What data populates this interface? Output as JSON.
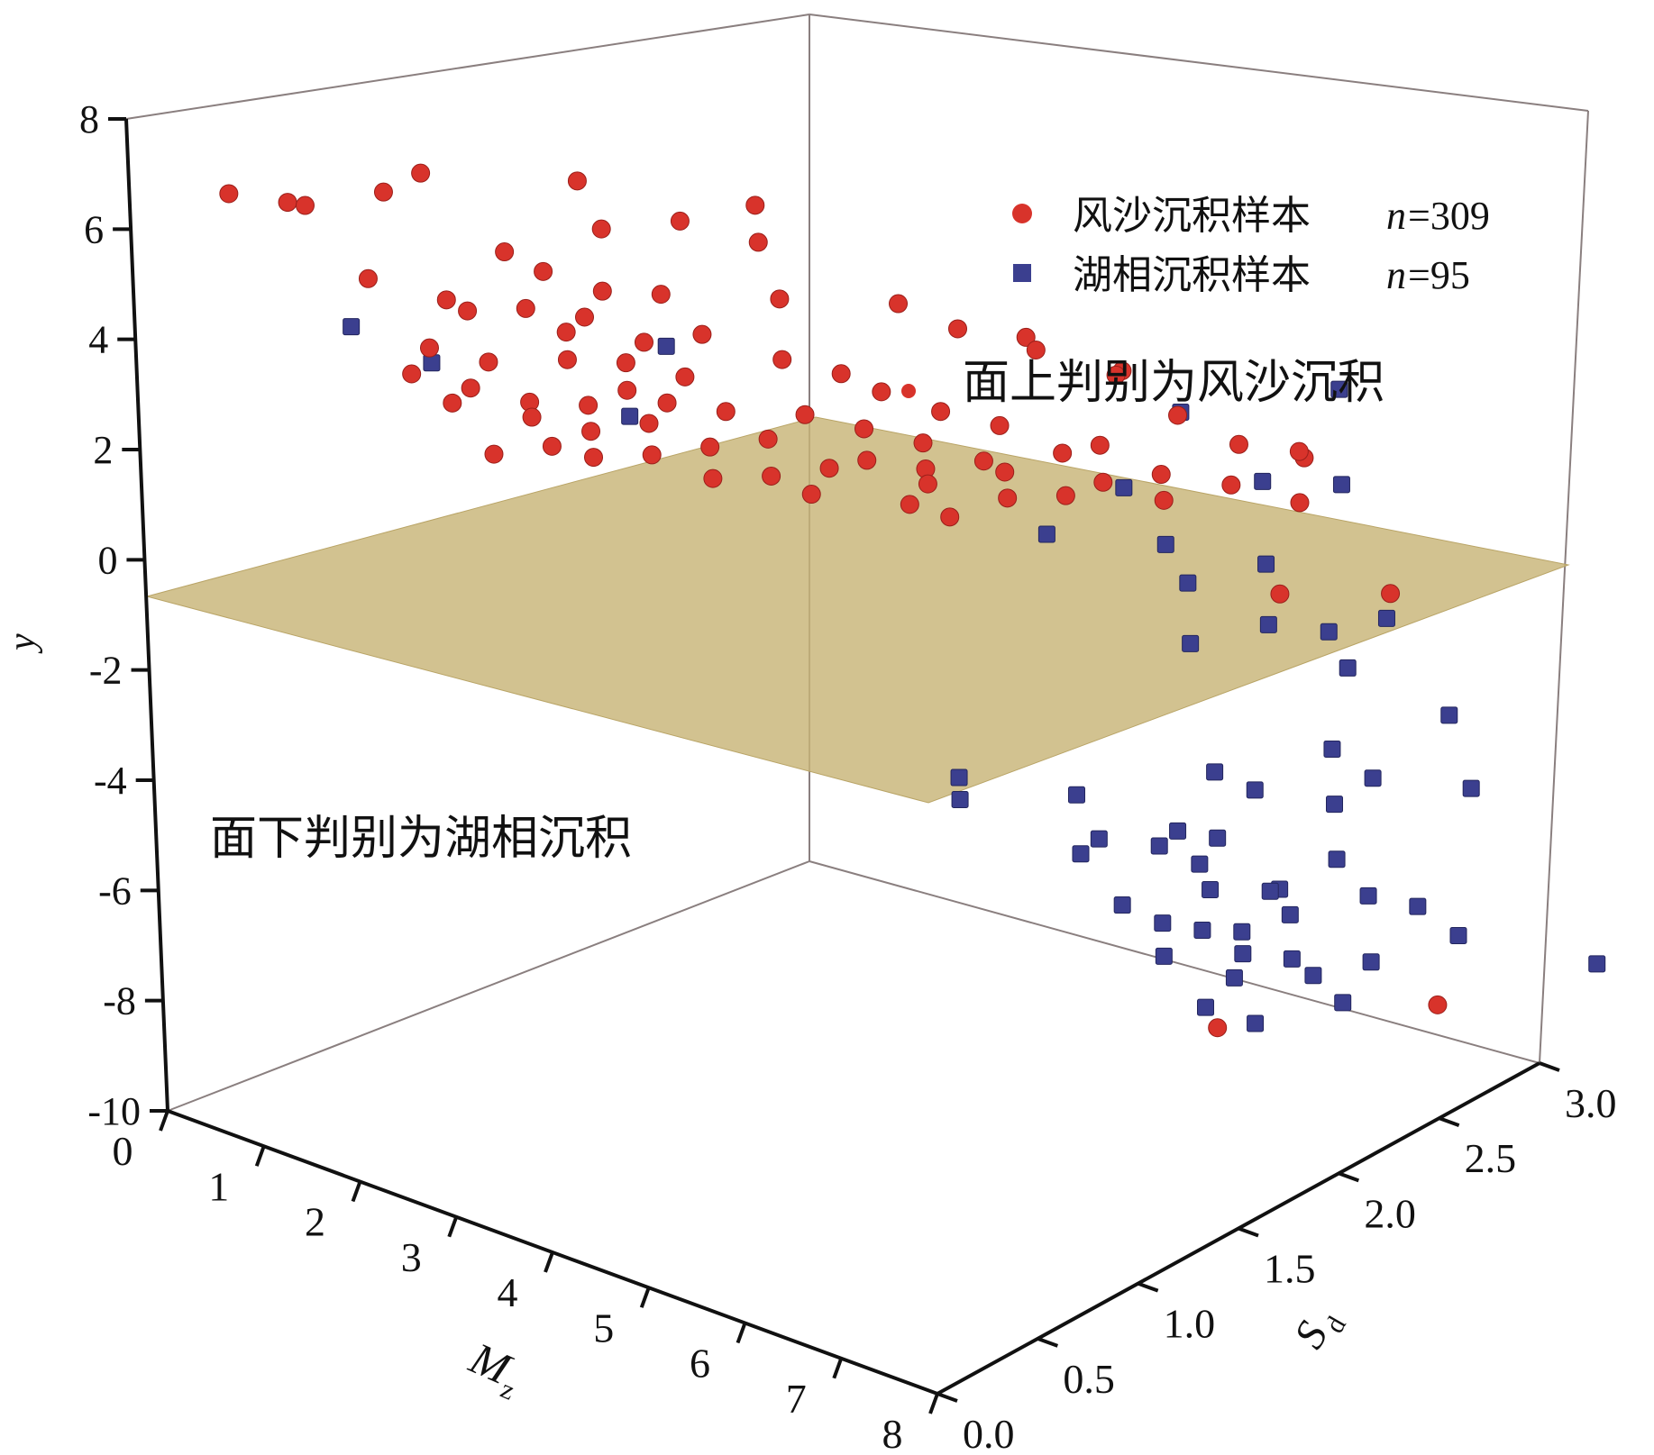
{
  "colors": {
    "aeolian": "#d8332b",
    "lacustrine": "#3b3f8f",
    "plane_fill": "#c8b477",
    "frame": "#8a7f7f",
    "axis": "#111111"
  },
  "chart_data": {
    "type": "scatter3d",
    "title": "",
    "axes": {
      "x": {
        "label": "M",
        "label_sub": "z",
        "range": [
          0,
          8
        ],
        "ticks": [
          "0",
          "1",
          "2",
          "3",
          "4",
          "5",
          "6",
          "7",
          "8"
        ]
      },
      "z": {
        "label": "S",
        "label_sub": "d",
        "range": [
          0.0,
          3.0
        ],
        "ticks": [
          "0.0",
          "0.5",
          "1.0",
          "1.5",
          "2.0",
          "2.5",
          "3.0"
        ]
      },
      "y": {
        "label": "y",
        "range": [
          -10,
          8
        ],
        "ticks": [
          "8",
          "6",
          "4",
          "2",
          "0",
          "-2",
          "-4",
          "-6",
          "-8",
          "-10"
        ]
      }
    },
    "plane": {
      "y": 0,
      "description_above": "面上判别为风沙沉积",
      "description_below": "面下判别为湖相沉积"
    },
    "legend": {
      "placement": "top-right",
      "entries": [
        {
          "name": "风沙沉积样本",
          "n_label": "n",
          "n_value": "=309",
          "marker": "circle"
        },
        {
          "name": "湖相沉积样本",
          "n_label": "n",
          "n_value": "=95",
          "marker": "square"
        }
      ]
    },
    "series": [
      {
        "name": "风沙沉积样本",
        "points_xzy": [
          [
            0.4,
            0.3,
            6.3
          ],
          [
            0.8,
            0.4,
            6.2
          ],
          [
            1.2,
            0.3,
            6.6
          ],
          [
            1.6,
            0.5,
            6.7
          ],
          [
            2.0,
            0.5,
            7.3
          ],
          [
            3.0,
            0.8,
            7.2
          ],
          [
            4.0,
            1.2,
            6.6
          ],
          [
            1.4,
            0.5,
            5.0
          ],
          [
            2.2,
            0.8,
            5.4
          ],
          [
            2.6,
            0.8,
            5.3
          ],
          [
            3.0,
            0.9,
            5.0
          ],
          [
            3.4,
            1.0,
            5.0
          ],
          [
            4.0,
            1.3,
            4.7
          ],
          [
            3.6,
            1.1,
            4.2
          ],
          [
            2.0,
            0.7,
            4.4
          ],
          [
            2.4,
            0.8,
            4.5
          ],
          [
            2.8,
            0.9,
            4.4
          ],
          [
            3.2,
            1.0,
            4.0
          ],
          [
            1.8,
            0.6,
            3.8
          ],
          [
            2.2,
            0.7,
            3.6
          ],
          [
            2.6,
            0.9,
            3.5
          ],
          [
            3.0,
            1.0,
            3.5
          ],
          [
            3.4,
            1.1,
            3.3
          ],
          [
            2.0,
            0.7,
            3.0
          ],
          [
            2.4,
            0.8,
            2.8
          ],
          [
            2.8,
            0.9,
            2.8
          ],
          [
            3.2,
            1.1,
            2.7
          ],
          [
            1.6,
            0.6,
            3.2
          ],
          [
            2.2,
            0.9,
            2.2
          ],
          [
            2.6,
            1.0,
            2.0
          ],
          [
            3.0,
            1.1,
            2.2
          ],
          [
            3.6,
            1.2,
            2.6
          ],
          [
            4.0,
            1.4,
            2.4
          ],
          [
            4.4,
            1.5,
            2.2
          ],
          [
            4.8,
            1.6,
            2.0
          ],
          [
            2.4,
            1.1,
            1.2
          ],
          [
            2.8,
            1.2,
            1.3
          ],
          [
            3.2,
            1.3,
            1.5
          ],
          [
            3.6,
            1.4,
            1.7
          ],
          [
            4.2,
            1.6,
            1.3
          ],
          [
            4.6,
            1.7,
            1.2
          ],
          [
            5.0,
            1.8,
            1.4
          ],
          [
            3.0,
            1.4,
            0.6
          ],
          [
            3.4,
            1.5,
            0.7
          ],
          [
            3.8,
            1.6,
            0.9
          ],
          [
            4.4,
            1.8,
            0.6
          ],
          [
            5.0,
            1.9,
            1.0
          ],
          [
            5.4,
            2.0,
            1.4
          ],
          [
            5.2,
            2.1,
            0.3
          ],
          [
            4.8,
            2.0,
            0.2
          ],
          [
            4.2,
            1.8,
            0.1
          ],
          [
            3.6,
            1.6,
            0.3
          ],
          [
            5.6,
            2.1,
            0.8
          ],
          [
            6.0,
            2.2,
            1.0
          ],
          [
            4.0,
            1.3,
            3.6
          ],
          [
            4.4,
            1.4,
            3.4
          ],
          [
            4.6,
            1.5,
            3.0
          ],
          [
            5.0,
            1.6,
            2.7
          ],
          [
            5.4,
            1.7,
            2.5
          ],
          [
            2.0,
            0.6,
            4.8
          ],
          [
            2.6,
            0.9,
            4.0
          ],
          [
            3.0,
            1.0,
            3.0
          ],
          [
            1.8,
            0.7,
            2.6
          ],
          [
            2.0,
            0.8,
            1.6
          ],
          [
            2.4,
            0.9,
            1.8
          ],
          [
            5.8,
            2.3,
            0.2
          ],
          [
            6.3,
            2.4,
            0.6
          ],
          [
            6.5,
            1.8,
            4.0
          ],
          [
            6.8,
            2.5,
            0.4
          ],
          [
            4.4,
            1.9,
            -0.2
          ],
          [
            6.0,
            2.9,
            -0.1
          ],
          [
            7.2,
            2.2,
            -0.4
          ],
          [
            7.5,
            2.6,
            -1.0
          ],
          [
            7.0,
            1.9,
            -7.8
          ],
          [
            7.6,
            2.7,
            -8.6
          ],
          [
            6.8,
            1.2,
            6.0
          ],
          [
            3.8,
            1.3,
            5.6
          ],
          [
            3.2,
            1.2,
            5.8
          ],
          [
            2.8,
            1.0,
            5.8
          ],
          [
            4.6,
            1.6,
            4.4
          ],
          [
            5.0,
            1.7,
            4.0
          ],
          [
            5.6,
            1.8,
            3.8
          ],
          [
            6.0,
            2.0,
            3.2
          ],
          [
            6.2,
            2.2,
            2.2
          ],
          [
            5.8,
            2.0,
            1.8
          ],
          [
            6.4,
            2.4,
            1.4
          ],
          [
            6.6,
            2.6,
            1.0
          ]
        ]
      },
      {
        "name": "湖相沉积样本",
        "points_xzy": [
          [
            1.2,
            0.5,
            4.0
          ],
          [
            1.6,
            0.7,
            3.2
          ],
          [
            3.0,
            1.2,
            3.4
          ],
          [
            2.8,
            1.1,
            2.2
          ],
          [
            5.8,
            2.4,
            1.6
          ],
          [
            6.4,
            2.9,
            1.4
          ],
          [
            5.6,
            2.2,
            0.5
          ],
          [
            6.2,
            2.6,
            0.2
          ],
          [
            6.6,
            2.8,
            0.0
          ],
          [
            5.2,
            2.0,
            -0.2
          ],
          [
            5.8,
            2.3,
            -0.6
          ],
          [
            6.2,
            2.6,
            -1.3
          ],
          [
            5.8,
            2.4,
            -1.5
          ],
          [
            6.2,
            2.6,
            -2.4
          ],
          [
            6.8,
            2.9,
            -2.5
          ],
          [
            6.4,
            2.8,
            -2.8
          ],
          [
            5.8,
            2.4,
            -2.6
          ],
          [
            6.8,
            2.7,
            -3.0
          ],
          [
            7.2,
            3.0,
            -4.2
          ],
          [
            6.6,
            2.7,
            -4.6
          ],
          [
            6.0,
            2.4,
            -4.8
          ],
          [
            5.4,
            2.0,
            -4.8
          ],
          [
            4.6,
            1.8,
            -4.6
          ],
          [
            4.6,
            1.8,
            -5.0
          ],
          [
            6.2,
            2.5,
            -5.2
          ],
          [
            6.8,
            2.8,
            -5.2
          ],
          [
            7.4,
            3.0,
            -5.4
          ],
          [
            5.4,
            2.1,
            -5.8
          ],
          [
            5.8,
            2.3,
            -5.8
          ],
          [
            6.0,
            2.4,
            -6.0
          ],
          [
            6.6,
            2.7,
            -5.6
          ],
          [
            5.2,
            2.1,
            -6.2
          ],
          [
            5.6,
            2.3,
            -6.2
          ],
          [
            5.8,
            2.4,
            -6.6
          ],
          [
            5.4,
            2.2,
            -7.2
          ],
          [
            5.9,
            2.4,
            -7.0
          ],
          [
            6.2,
            2.6,
            -7.2
          ],
          [
            6.6,
            2.7,
            -6.6
          ],
          [
            5.6,
            2.3,
            -7.6
          ],
          [
            5.8,
            2.4,
            -7.8
          ],
          [
            6.0,
            2.5,
            -7.9
          ],
          [
            6.3,
            2.6,
            -7.6
          ],
          [
            6.7,
            2.8,
            -7.4
          ],
          [
            7.0,
            2.9,
            -7.6
          ],
          [
            5.6,
            2.3,
            -8.2
          ],
          [
            6.0,
            2.5,
            -8.3
          ],
          [
            6.3,
            2.6,
            -8.4
          ],
          [
            5.9,
            2.5,
            -8.8
          ],
          [
            6.3,
            2.7,
            -8.9
          ],
          [
            6.7,
            2.8,
            -8.6
          ],
          [
            7.2,
            3.0,
            -8.2
          ],
          [
            5.8,
            2.4,
            -9.2
          ],
          [
            6.1,
            2.5,
            -9.5
          ],
          [
            6.6,
            2.7,
            -9.2
          ],
          [
            8.0,
            3.3,
            -8.8
          ],
          [
            6.1,
            2.6,
            -7.3
          ]
        ]
      }
    ]
  }
}
